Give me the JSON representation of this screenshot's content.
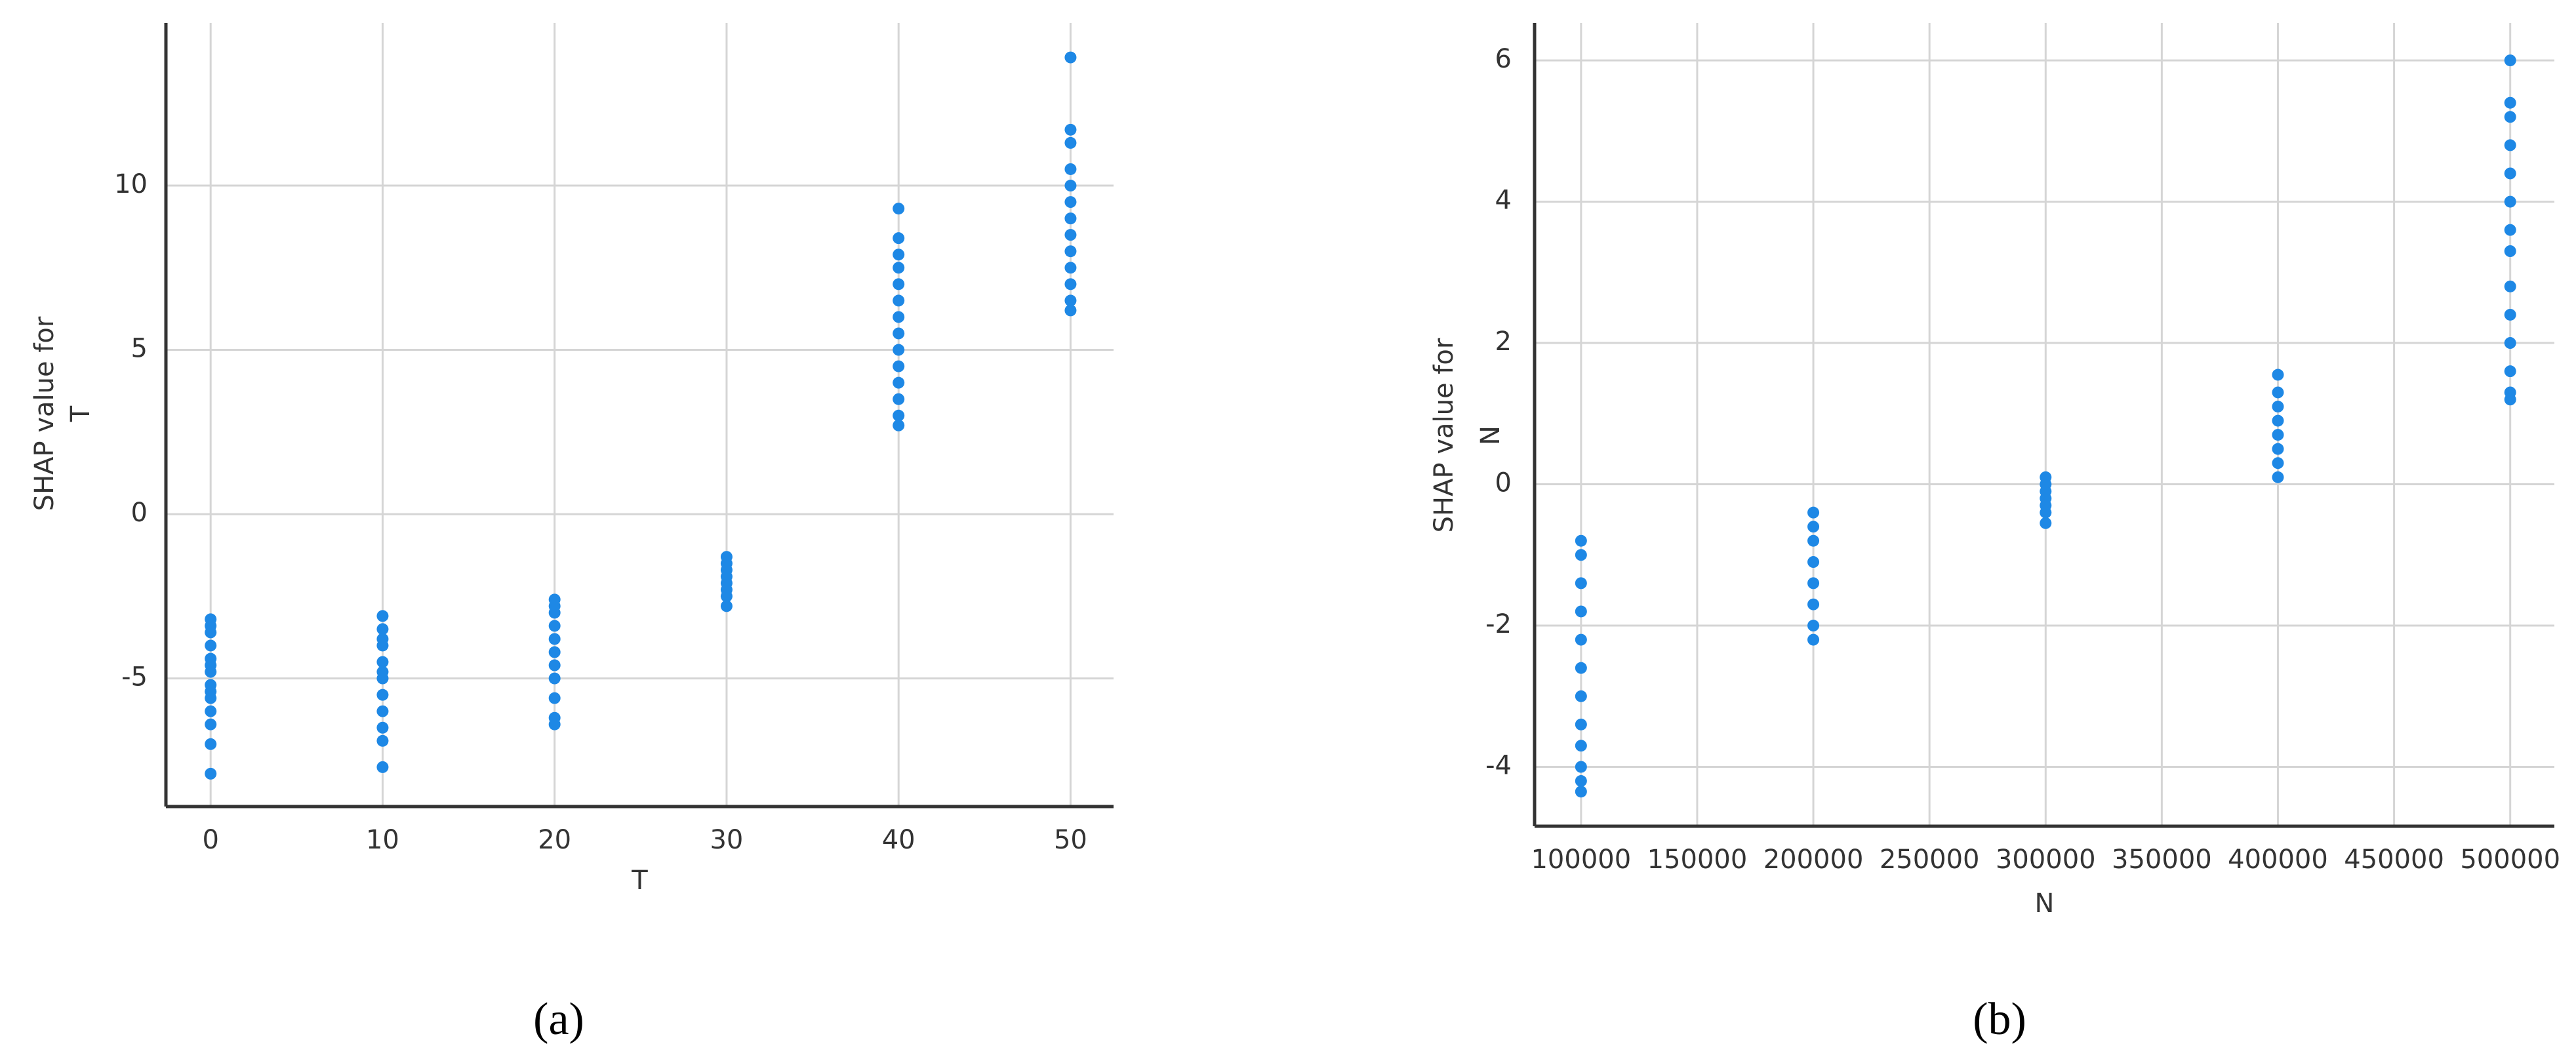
{
  "chart_data": [
    {
      "type": "scatter",
      "caption": "(a)",
      "xlabel": "T",
      "ylabel": [
        "SHAP value for",
        "T"
      ],
      "color": "#1e88e5",
      "grid": true,
      "xlim": [
        -2.6,
        52.5
      ],
      "ylim": [
        -8.9,
        14.95
      ],
      "xticks": [
        0,
        10,
        20,
        30,
        40,
        50
      ],
      "yticks": [
        -5,
        0,
        5,
        10
      ],
      "x": [
        0,
        0,
        0,
        0,
        0,
        0,
        0,
        0,
        0,
        0,
        0,
        0,
        0,
        0,
        10,
        10,
        10,
        10,
        10,
        10,
        10,
        10,
        10,
        10,
        10,
        10,
        20,
        20,
        20,
        20,
        20,
        20,
        20,
        20,
        20,
        20,
        20,
        30,
        30,
        30,
        30,
        30,
        30,
        30,
        30,
        40,
        40,
        40,
        40,
        40,
        40,
        40,
        40,
        40,
        40,
        40,
        40,
        40,
        40,
        50,
        50,
        50,
        50,
        50,
        50,
        50,
        50,
        50,
        50,
        50,
        50,
        50
      ],
      "y": [
        -3.2,
        -3.6,
        -4.0,
        -4.4,
        -4.8,
        -5.2,
        -5.6,
        -6.0,
        -6.4,
        -7.0,
        -7.9,
        -3.4,
        -4.6,
        -5.4,
        -3.1,
        -3.5,
        -4.0,
        -4.5,
        -5.0,
        -5.5,
        -6.0,
        -6.5,
        -6.9,
        -7.7,
        -3.8,
        -4.8,
        -2.6,
        -3.0,
        -3.4,
        -3.8,
        -4.2,
        -4.6,
        -5.0,
        -5.6,
        -6.2,
        -6.4,
        -2.8,
        -1.3,
        -1.5,
        -1.7,
        -1.9,
        -2.1,
        -2.3,
        -2.5,
        -2.8,
        9.3,
        8.4,
        7.9,
        7.5,
        7.0,
        6.5,
        6.0,
        5.5,
        5.0,
        4.5,
        4.0,
        3.5,
        3.0,
        2.7,
        13.9,
        11.7,
        11.3,
        10.5,
        10.0,
        9.5,
        9.0,
        8.5,
        8.0,
        7.5,
        7.0,
        6.5,
        6.2
      ]
    },
    {
      "type": "scatter",
      "caption": "(b)",
      "xlabel": "N",
      "ylabel": [
        "SHAP value for",
        "N"
      ],
      "color": "#1e88e5",
      "grid": true,
      "xlim": [
        80000,
        519000
      ],
      "ylim": [
        -4.84,
        6.53
      ],
      "xticks": [
        100000,
        150000,
        200000,
        250000,
        300000,
        350000,
        400000,
        450000,
        500000
      ],
      "yticks": [
        -4,
        -2,
        0,
        2,
        4,
        6
      ],
      "x": [
        100000,
        100000,
        100000,
        100000,
        100000,
        100000,
        100000,
        100000,
        100000,
        100000,
        100000,
        100000,
        200000,
        200000,
        200000,
        200000,
        200000,
        200000,
        200000,
        200000,
        300000,
        300000,
        300000,
        300000,
        300000,
        300000,
        300000,
        400000,
        400000,
        400000,
        400000,
        400000,
        400000,
        400000,
        400000,
        500000,
        500000,
        500000,
        500000,
        500000,
        500000,
        500000,
        500000,
        500000,
        500000,
        500000,
        500000,
        500000,
        500000
      ],
      "y": [
        -0.8,
        -1.0,
        -1.4,
        -1.8,
        -2.2,
        -2.6,
        -3.0,
        -3.4,
        -3.7,
        -4.0,
        -4.2,
        -4.35,
        -0.4,
        -0.6,
        -0.8,
        -1.1,
        -1.4,
        -1.7,
        -2.0,
        -2.2,
        0.1,
        0,
        -0.1,
        -0.2,
        -0.3,
        -0.4,
        -0.55,
        1.55,
        1.3,
        1.1,
        0.9,
        0.7,
        0.5,
        0.3,
        0.1,
        6.0,
        5.4,
        5.2,
        4.8,
        4.4,
        4.0,
        3.6,
        3.3,
        2.8,
        2.4,
        2.0,
        1.6,
        1.3,
        1.2
      ]
    }
  ]
}
